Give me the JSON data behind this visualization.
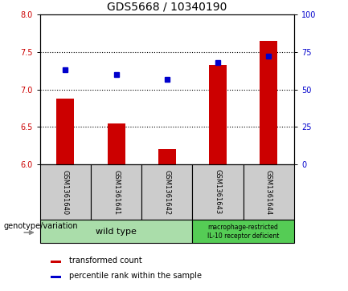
{
  "title": "GDS5668 / 10340190",
  "samples": [
    "GSM1361640",
    "GSM1361641",
    "GSM1361642",
    "GSM1361643",
    "GSM1361644"
  ],
  "transformed_count": [
    6.88,
    6.55,
    6.2,
    7.33,
    7.65
  ],
  "percentile_rank": [
    63,
    60,
    57,
    68,
    72
  ],
  "ylim_left": [
    6.0,
    8.0
  ],
  "ylim_right": [
    0,
    100
  ],
  "yticks_left": [
    6.0,
    6.5,
    7.0,
    7.5,
    8.0
  ],
  "yticks_right": [
    0,
    25,
    50,
    75,
    100
  ],
  "bar_color": "#cc0000",
  "dot_color": "#0000cc",
  "background_color": "#ffffff",
  "plot_bg_color": "#ffffff",
  "wild_type_samples": [
    0,
    1,
    2
  ],
  "mutant_samples": [
    3,
    4
  ],
  "wild_type_label": "wild type",
  "mutant_label": "macrophage-restricted\nIL-10 receptor deficient",
  "genotype_label": "genotype/variation",
  "legend_bar_label": "transformed count",
  "legend_dot_label": "percentile rank within the sample",
  "sample_box_color": "#cccccc",
  "wild_type_box_color": "#aaddaa",
  "mutant_box_color": "#55cc55",
  "title_fontsize": 10,
  "axis_fontsize": 7,
  "sample_fontsize": 6,
  "label_fontsize": 7
}
